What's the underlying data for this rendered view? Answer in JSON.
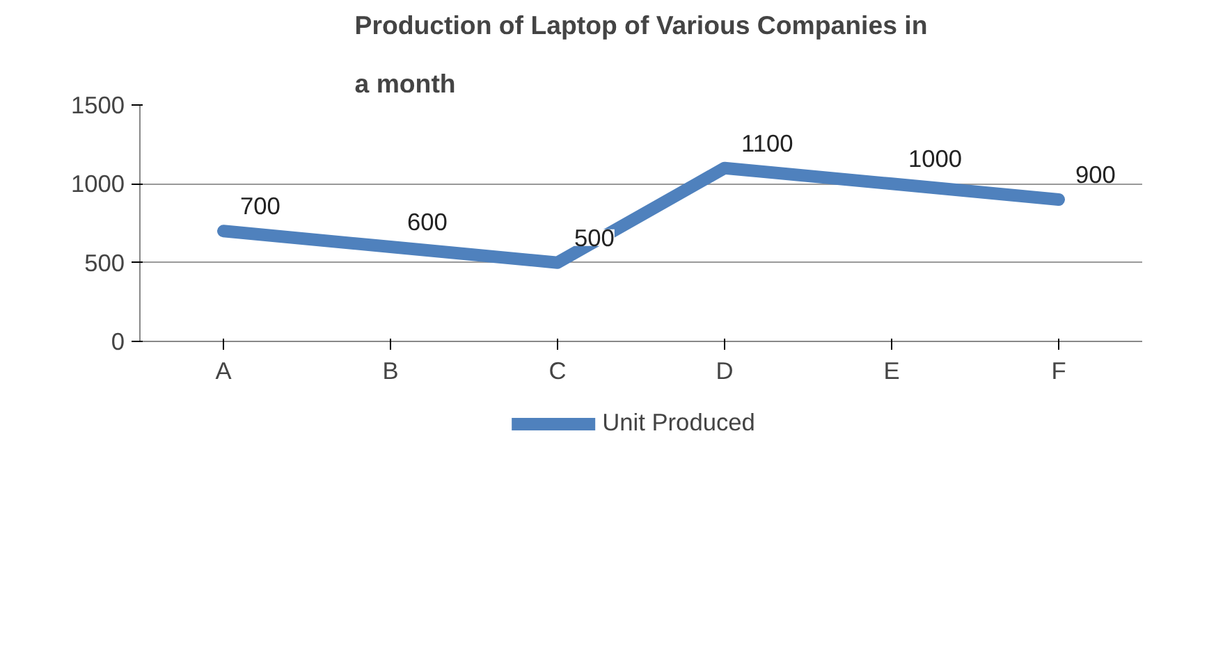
{
  "chart_data": {
    "type": "line",
    "title": "Production of Laptop of Various Companies in a month",
    "categories": [
      "A",
      "B",
      "C",
      "D",
      "E",
      "F"
    ],
    "series": [
      {
        "name": "Unit Produced",
        "color": "#4f81bd",
        "values": [
          700,
          600,
          500,
          1100,
          1000,
          900
        ]
      }
    ],
    "ylim": [
      0,
      1500
    ],
    "yticks": [
      0,
      500,
      1000,
      1500
    ],
    "grid": "y",
    "legend": "bottom",
    "data_labels": true,
    "marker": "none",
    "line_style": "solid"
  }
}
